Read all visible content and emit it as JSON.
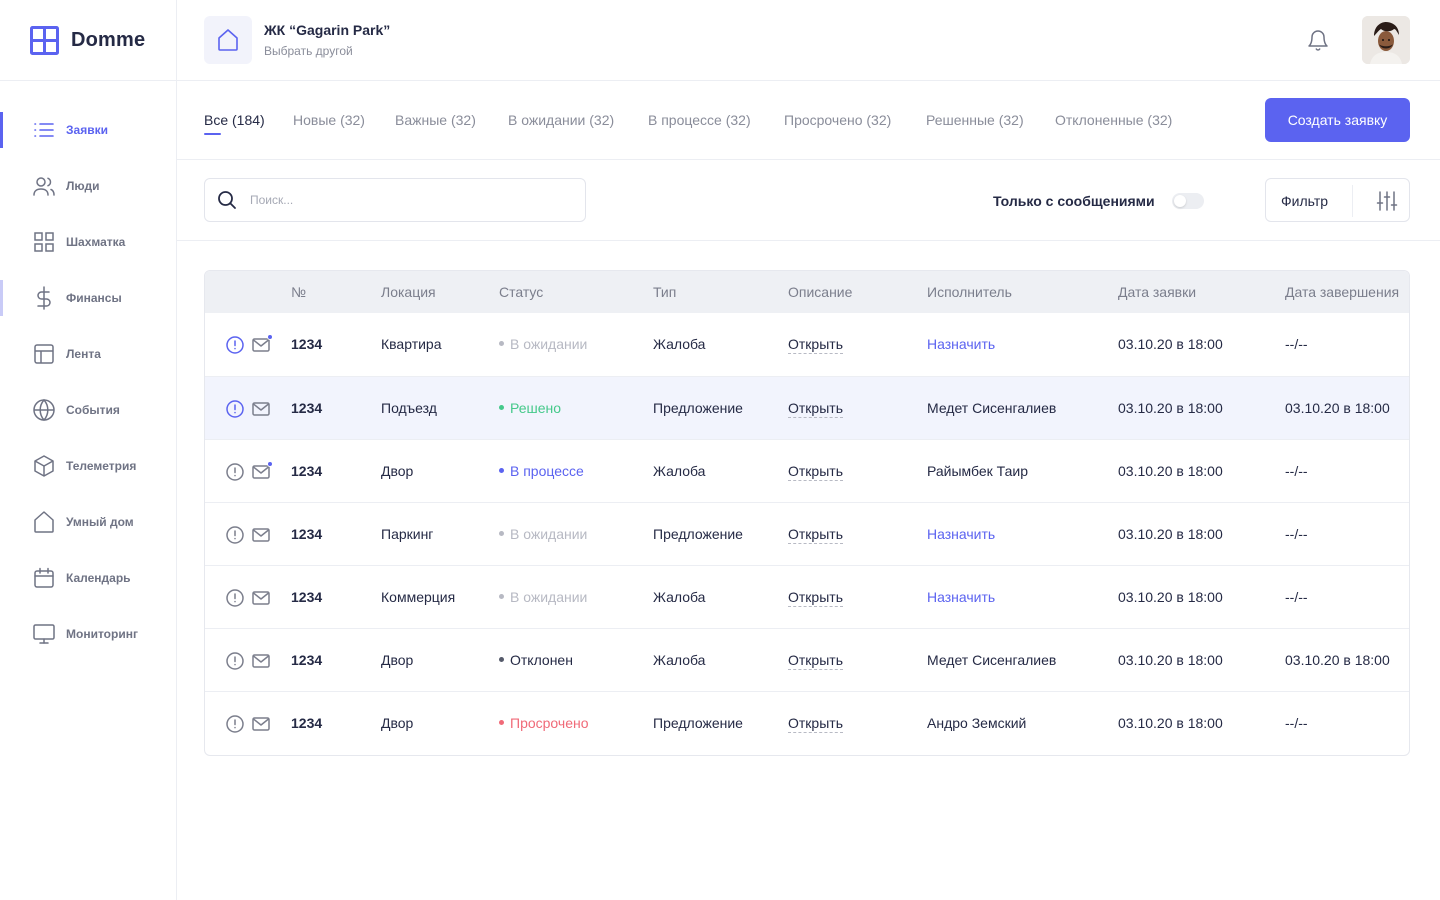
{
  "brand": {
    "name": "Domme",
    "accent": "#5b63f0"
  },
  "header": {
    "complex_name": "ЖК “Gagarin Park”",
    "change_label": "Выбрать другой"
  },
  "sidebar": {
    "items": [
      {
        "label": "Заявки",
        "icon": "list-icon"
      },
      {
        "label": "Люди",
        "icon": "people-icon"
      },
      {
        "label": "Шахматка",
        "icon": "grid-icon"
      },
      {
        "label": "Финансы",
        "icon": "dollar-icon"
      },
      {
        "label": "Лента",
        "icon": "layout-icon"
      },
      {
        "label": "События",
        "icon": "globe-icon"
      },
      {
        "label": "Телеметрия",
        "icon": "cube-icon"
      },
      {
        "label": "Умный дом",
        "icon": "home-icon"
      },
      {
        "label": "Календарь",
        "icon": "calendar-icon"
      },
      {
        "label": "Мониторинг",
        "icon": "monitor-icon"
      }
    ]
  },
  "tabs": [
    {
      "label": "Все (184)"
    },
    {
      "label": "Новые (32)"
    },
    {
      "label": "Важные (32)"
    },
    {
      "label": "В ожидании (32)"
    },
    {
      "label": "В процессе (32)"
    },
    {
      "label": "Просрочено (32)"
    },
    {
      "label": "Решенные (32)"
    },
    {
      "label": "Отклоненные (32)"
    }
  ],
  "create_button": "Создать заявку",
  "search": {
    "placeholder": "Поиск...",
    "value": ""
  },
  "only_messages": {
    "label": "Только с сообщениями",
    "enabled": false
  },
  "filter_button": "Фильтр",
  "table": {
    "columns": [
      "№",
      "Локация",
      "Статус",
      "Тип",
      "Описание",
      "Исполнитель",
      "Дата заявки",
      "Дата завершения"
    ],
    "status_colors": {
      "В ожидании": "#b7b9c3",
      "Решено": "#45c98a",
      "В процессе": "#5b63f0",
      "Отклонен": "#555a6a",
      "Просрочено": "#f06a78"
    },
    "rows": [
      {
        "important": true,
        "unread": true,
        "num": "1234",
        "location": "Квартира",
        "status": "В ожидании",
        "type": "Жалоба",
        "description": "Открыть",
        "assignee": "Назначить",
        "assignee_is_action": true,
        "date": "03.10.20 в 18:00",
        "done": "--/--"
      },
      {
        "important": true,
        "unread": false,
        "highlight": true,
        "num": "1234",
        "location": "Подъезд",
        "status": "Решено",
        "type": "Предложение",
        "description": "Открыть",
        "assignee": "Медет Сисенгалиев",
        "assignee_is_action": false,
        "date": "03.10.20 в 18:00",
        "done": "03.10.20 в 18:00"
      },
      {
        "important": false,
        "unread": true,
        "num": "1234",
        "location": "Двор",
        "status": "В процессе",
        "type": "Жалоба",
        "description": "Открыть",
        "assignee": "Райымбек Таир",
        "assignee_is_action": false,
        "date": "03.10.20 в 18:00",
        "done": "--/--"
      },
      {
        "important": false,
        "unread": false,
        "num": "1234",
        "location": "Паркинг",
        "status": "В ожидании",
        "type": "Предложение",
        "description": "Открыть",
        "assignee": "Назначить",
        "assignee_is_action": true,
        "date": "03.10.20 в 18:00",
        "done": "--/--"
      },
      {
        "important": false,
        "unread": false,
        "num": "1234",
        "location": "Коммерция",
        "status": "В ожидании",
        "type": "Жалоба",
        "description": "Открыть",
        "assignee": "Назначить",
        "assignee_is_action": true,
        "date": "03.10.20 в 18:00",
        "done": "--/--"
      },
      {
        "important": false,
        "unread": false,
        "num": "1234",
        "location": "Двор",
        "status": "Отклонен",
        "type": "Жалоба",
        "description": "Открыть",
        "assignee": "Медет Сисенгалиев",
        "assignee_is_action": false,
        "date": "03.10.20 в 18:00",
        "done": "03.10.20 в 18:00"
      },
      {
        "important": false,
        "unread": false,
        "num": "1234",
        "location": "Двор",
        "status": "Просрочено",
        "type": "Предложение",
        "description": "Открыть",
        "assignee": "Андро Земский",
        "assignee_is_action": false,
        "date": "03.10.20 в 18:00",
        "done": "--/--"
      }
    ]
  }
}
